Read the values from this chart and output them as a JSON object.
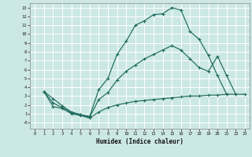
{
  "xlabel": "Humidex (Indice chaleur)",
  "bg_color": "#cce8e4",
  "grid_color": "#aaccca",
  "line_color": "#1e6b5e",
  "x_min": -0.5,
  "x_max": 23.5,
  "y_min": -0.7,
  "y_max": 13.5,
  "line1_x": [
    1,
    2,
    3,
    4,
    5,
    6,
    7,
    8,
    9,
    10,
    11,
    12,
    13,
    14,
    15,
    16,
    17,
    18,
    19,
    20,
    21
  ],
  "line1_y": [
    3.5,
    2.7,
    1.9,
    1.2,
    0.9,
    0.7,
    3.7,
    5.0,
    7.7,
    9.2,
    11.0,
    11.5,
    12.2,
    12.3,
    13.0,
    12.7,
    10.3,
    9.4,
    7.6,
    5.3,
    3.2
  ],
  "line2_x": [
    1,
    2,
    3,
    4,
    5,
    6,
    7,
    8,
    9,
    10,
    11,
    12,
    13,
    14,
    15,
    16,
    17,
    18,
    19,
    20,
    21,
    22
  ],
  "line2_y": [
    3.5,
    2.2,
    1.7,
    1.1,
    0.9,
    0.6,
    2.6,
    3.4,
    4.8,
    5.8,
    6.5,
    7.2,
    7.7,
    8.2,
    8.7,
    8.2,
    7.2,
    6.2,
    5.8,
    7.5,
    5.3,
    3.2
  ],
  "line3_x": [
    1,
    2,
    3,
    4,
    5,
    6,
    7,
    8,
    9,
    10,
    11,
    12,
    13,
    14,
    15,
    16,
    17,
    18,
    19,
    20,
    21,
    22,
    23
  ],
  "line3_y": [
    3.5,
    1.8,
    1.6,
    1.0,
    0.8,
    0.5,
    1.2,
    1.7,
    2.0,
    2.2,
    2.4,
    2.5,
    2.6,
    2.7,
    2.8,
    2.9,
    3.0,
    3.0,
    3.1,
    3.1,
    3.2,
    3.2,
    3.2
  ],
  "ytick_vals": [
    0,
    1,
    2,
    3,
    4,
    5,
    6,
    7,
    8,
    9,
    10,
    11,
    12,
    13
  ],
  "ytick_labels": [
    "-0",
    "1",
    "2",
    "3",
    "4",
    "5",
    "6",
    "7",
    "8",
    "9",
    "10",
    "11",
    "12",
    "13"
  ],
  "xtick_vals": [
    0,
    1,
    2,
    3,
    4,
    5,
    6,
    7,
    8,
    9,
    10,
    11,
    12,
    13,
    14,
    15,
    16,
    17,
    18,
    19,
    20,
    21,
    22,
    23
  ],
  "marker": "+"
}
